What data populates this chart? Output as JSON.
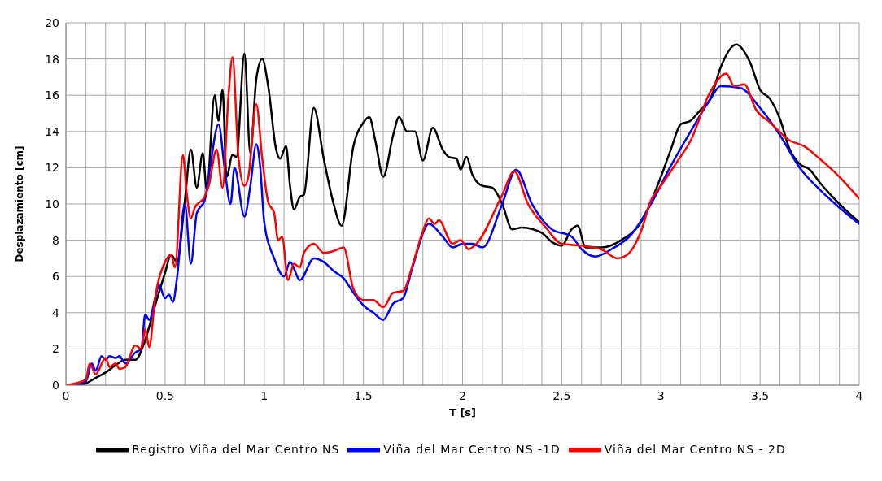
{
  "chart_data": {
    "type": "line",
    "xlabel": "T [s]",
    "ylabel": "Desplazamiento [cm]",
    "xlim": [
      0,
      4
    ],
    "ylim": [
      0,
      20
    ],
    "xticks": [
      0,
      {
        "value": 0.1,
        "label": null
      },
      {
        "value": 0.2,
        "label": null
      },
      {
        "value": 0.3,
        "label": null
      },
      {
        "value": 0.4,
        "label": null
      },
      0.5,
      {
        "value": 0.6,
        "label": null
      },
      {
        "value": 0.7,
        "label": null
      },
      {
        "value": 0.8,
        "label": null
      },
      {
        "value": 0.9,
        "label": null
      },
      1,
      {
        "value": 1.1,
        "label": null
      },
      {
        "value": 1.2,
        "label": null
      },
      {
        "value": 1.3,
        "label": null
      },
      {
        "value": 1.4,
        "label": null
      },
      1.5,
      {
        "value": 1.6,
        "label": null
      },
      {
        "value": 1.7,
        "label": null
      },
      {
        "value": 1.8,
        "label": null
      },
      {
        "value": 1.9,
        "label": null
      },
      2,
      {
        "value": 2.1,
        "label": null
      },
      {
        "value": 2.2,
        "label": null
      },
      {
        "value": 2.3,
        "label": null
      },
      {
        "value": 2.4,
        "label": null
      },
      2.5,
      {
        "value": 2.6,
        "label": null
      },
      {
        "value": 2.7,
        "label": null
      },
      {
        "value": 2.8,
        "label": null
      },
      {
        "value": 2.9,
        "label": null
      },
      3,
      {
        "value": 3.1,
        "label": null
      },
      {
        "value": 3.2,
        "label": null
      },
      {
        "value": 3.3,
        "label": null
      },
      {
        "value": 3.4,
        "label": null
      },
      3.5,
      {
        "value": 3.6,
        "label": null
      },
      {
        "value": 3.7,
        "label": null
      },
      {
        "value": 3.8,
        "label": null
      },
      {
        "value": 3.9,
        "label": null
      },
      4
    ],
    "yticks": [
      0,
      2,
      4,
      6,
      8,
      10,
      12,
      14,
      16,
      18,
      20
    ],
    "grid": true,
    "legend": "bottom",
    "marker": "none",
    "line_style": "solid",
    "series": [
      {
        "name": "Registro Viña del Mar Centro NS",
        "color": "#000000",
        "x": [
          0,
          0.05,
          0.1,
          0.15,
          0.2,
          0.25,
          0.3,
          0.35,
          0.4,
          0.45,
          0.5,
          0.53,
          0.56,
          0.6,
          0.63,
          0.66,
          0.69,
          0.71,
          0.75,
          0.77,
          0.79,
          0.81,
          0.84,
          0.86,
          0.9,
          0.93,
          0.96,
          0.99,
          1.02,
          1.06,
          1.08,
          1.11,
          1.13,
          1.15,
          1.18,
          1.2,
          1.25,
          1.3,
          1.35,
          1.39,
          1.45,
          1.5,
          1.53,
          1.56,
          1.6,
          1.65,
          1.68,
          1.72,
          1.76,
          1.8,
          1.85,
          1.9,
          1.93,
          1.97,
          1.99,
          2.02,
          2.05,
          2.1,
          2.15,
          2.2,
          2.25,
          2.3,
          2.4,
          2.45,
          2.5,
          2.55,
          2.58,
          2.62,
          2.7,
          2.8,
          2.9,
          3,
          3.05,
          3.1,
          3.15,
          3.2,
          3.25,
          3.3,
          3.38,
          3.45,
          3.5,
          3.55,
          3.6,
          3.65,
          3.7,
          3.75,
          3.8,
          3.9,
          4
        ],
        "values": [
          0,
          0,
          0.1,
          0.4,
          0.7,
          1.1,
          1.4,
          1.4,
          2.5,
          4.4,
          6.2,
          7.2,
          6.8,
          10.2,
          13,
          10.9,
          12.8,
          10.8,
          16,
          14.6,
          16.3,
          11.5,
          12.7,
          12.6,
          18.3,
          12.8,
          16.9,
          18,
          16.5,
          13,
          12.5,
          13.2,
          11,
          9.7,
          10.4,
          10.5,
          15.3,
          12.5,
          10,
          8.8,
          13.2,
          14.5,
          14.8,
          13.5,
          11.5,
          13.8,
          14.8,
          14,
          14,
          12.4,
          14.2,
          13,
          12.6,
          12.5,
          11.9,
          12.6,
          11.6,
          11,
          10.9,
          10,
          8.6,
          8.7,
          8.4,
          7.9,
          7.7,
          8.6,
          8.8,
          7.6,
          7.6,
          8,
          9,
          11.5,
          13,
          14.4,
          14.6,
          15.2,
          15.8,
          17.5,
          18.8,
          17.8,
          16.3,
          15.8,
          14.7,
          13,
          12.2,
          11.9,
          11.2,
          10,
          9
        ]
      },
      {
        "name": "Viña del Mar Centro NS -1D",
        "color": "#0000ff",
        "x": [
          0,
          0.1,
          0.13,
          0.15,
          0.18,
          0.2,
          0.22,
          0.25,
          0.27,
          0.3,
          0.35,
          0.38,
          0.4,
          0.42,
          0.45,
          0.47,
          0.5,
          0.52,
          0.54,
          0.56,
          0.6,
          0.63,
          0.66,
          0.7,
          0.72,
          0.77,
          0.8,
          0.83,
          0.85,
          0.9,
          0.93,
          0.96,
          0.98,
          1,
          1.05,
          1.1,
          1.13,
          1.18,
          1.25,
          1.3,
          1.35,
          1.4,
          1.45,
          1.5,
          1.55,
          1.6,
          1.65,
          1.7,
          1.75,
          1.83,
          1.9,
          1.95,
          2,
          2.05,
          2.1,
          2.2,
          2.27,
          2.35,
          2.45,
          2.55,
          2.6,
          2.67,
          2.75,
          2.85,
          2.95,
          3.05,
          3.15,
          3.25,
          3.3,
          3.4,
          3.5,
          3.6,
          3.7,
          3.8,
          3.9,
          4
        ],
        "values": [
          0,
          0.2,
          1.2,
          0.8,
          1.6,
          1.4,
          1.6,
          1.5,
          1.6,
          1.2,
          1.8,
          2,
          3.9,
          3.6,
          4.8,
          5.5,
          4.8,
          5,
          4.6,
          5.9,
          10,
          6.7,
          9.5,
          10.2,
          11.5,
          14.4,
          12,
          10,
          12,
          9.3,
          11,
          13.3,
          12,
          9,
          7,
          6,
          6.8,
          5.8,
          7,
          6.8,
          6.3,
          5.9,
          5.1,
          4.4,
          4,
          3.6,
          4.5,
          4.8,
          6.6,
          8.9,
          8.2,
          7.6,
          7.8,
          7.8,
          7.6,
          10,
          11.9,
          10,
          8.6,
          8.2,
          7.5,
          7.1,
          7.5,
          8.3,
          10,
          12.1,
          14,
          15.8,
          16.5,
          16.4,
          15.3,
          13.8,
          12,
          10.8,
          9.8,
          8.9
        ]
      },
      {
        "name": "Viña del Mar Centro NS - 2D",
        "color": "#ff0000",
        "x": [
          0,
          0.1,
          0.12,
          0.15,
          0.2,
          0.22,
          0.25,
          0.27,
          0.3,
          0.35,
          0.38,
          0.4,
          0.42,
          0.45,
          0.5,
          0.53,
          0.55,
          0.59,
          0.61,
          0.63,
          0.65,
          0.7,
          0.72,
          0.76,
          0.79,
          0.82,
          0.84,
          0.87,
          0.9,
          0.92,
          0.96,
          0.99,
          1.02,
          1.05,
          1.07,
          1.09,
          1.12,
          1.15,
          1.18,
          1.2,
          1.25,
          1.3,
          1.35,
          1.4,
          1.45,
          1.5,
          1.55,
          1.6,
          1.65,
          1.7,
          1.75,
          1.8,
          1.83,
          1.86,
          1.88,
          1.95,
          1.99,
          2.03,
          2.07,
          2.2,
          2.26,
          2.33,
          2.42,
          2.5,
          2.6,
          2.7,
          2.78,
          2.83,
          2.9,
          2.95,
          3,
          3.08,
          3.15,
          3.25,
          3.33,
          3.37,
          3.42,
          3.48,
          3.55,
          3.65,
          3.72,
          3.8,
          3.9,
          4
        ],
        "values": [
          0,
          0.3,
          1.2,
          0.6,
          1.5,
          1,
          1.2,
          0.9,
          1,
          2.2,
          2,
          3.1,
          2.1,
          4.8,
          6.8,
          7.2,
          6.5,
          12.7,
          10.5,
          9.2,
          9.8,
          10.4,
          11,
          13,
          10.9,
          16,
          18.1,
          12.6,
          11,
          11.5,
          15.5,
          12.5,
          10.1,
          9.5,
          8,
          8.2,
          5.8,
          6.7,
          6.5,
          7.3,
          7.8,
          7.3,
          7.4,
          7.6,
          5.3,
          4.7,
          4.7,
          4.3,
          5.1,
          5.2,
          6.7,
          8.5,
          9.2,
          8.9,
          9.1,
          7.8,
          8,
          7.5,
          7.8,
          10.5,
          11.8,
          10,
          8.7,
          7.8,
          7.7,
          7.5,
          7,
          7.2,
          8.5,
          10.2,
          11,
          12.3,
          13.5,
          16.2,
          17.2,
          16.5,
          16.6,
          15.2,
          14.5,
          13.5,
          13.2,
          12.5,
          11.5,
          10.3
        ]
      }
    ]
  }
}
